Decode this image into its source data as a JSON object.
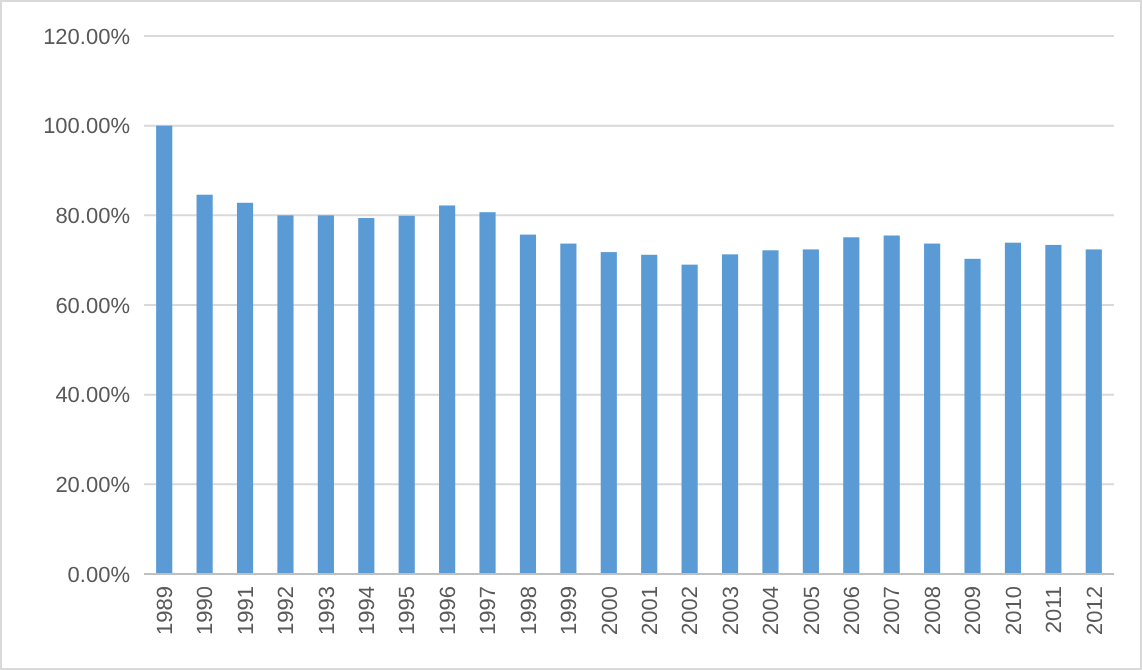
{
  "chart_data": {
    "type": "bar",
    "categories": [
      "1989",
      "1990",
      "1991",
      "1992",
      "1993",
      "1994",
      "1995",
      "1996",
      "1997",
      "1998",
      "1999",
      "2000",
      "2001",
      "2002",
      "2003",
      "2004",
      "2005",
      "2006",
      "2007",
      "2008",
      "2009",
      "2010",
      "2011",
      "2012"
    ],
    "values": [
      100,
      84.6,
      82.8,
      80,
      80,
      79.4,
      79.9,
      82.2,
      80.7,
      75.7,
      73.7,
      71.8,
      71.2,
      69,
      71.3,
      72.2,
      72.4,
      75.1,
      75.5,
      73.7,
      70.3,
      73.9,
      73.4,
      72.4
    ],
    "color": "#5b9bd5",
    "ylim": [
      0,
      120
    ],
    "yticks": [
      {
        "value": 0,
        "label": "0.00%"
      },
      {
        "value": 20,
        "label": "20.00%"
      },
      {
        "value": 40,
        "label": "40.00%"
      },
      {
        "value": 60,
        "label": "60.00%"
      },
      {
        "value": 80,
        "label": "80.00%"
      },
      {
        "value": 100,
        "label": "100.00%"
      },
      {
        "value": 120,
        "label": "120.00%"
      }
    ],
    "grid": "y"
  }
}
